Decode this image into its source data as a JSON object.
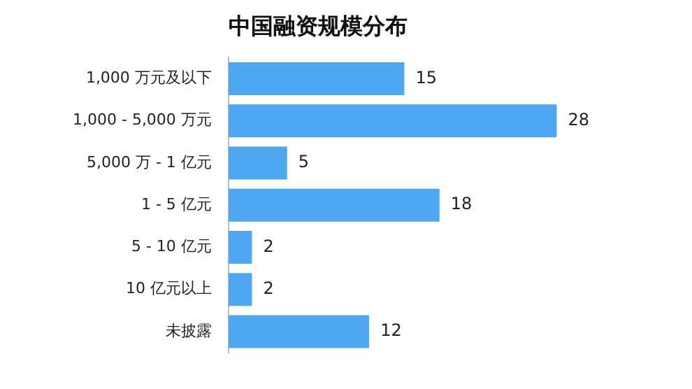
{
  "chart_data": {
    "type": "bar",
    "title": "中国融资规模分布",
    "orientation": "horizontal",
    "categories": [
      "1,000 万元及以下",
      "1,000 - 5,000 万元",
      "5,000 万 - 1 亿元",
      "1 - 5 亿元",
      "5 - 10 亿元",
      "10 亿元以上",
      "未披露"
    ],
    "values": [
      15,
      28,
      5,
      18,
      2,
      2,
      12
    ],
    "color": "#4ea7f0",
    "data_labels": true
  }
}
